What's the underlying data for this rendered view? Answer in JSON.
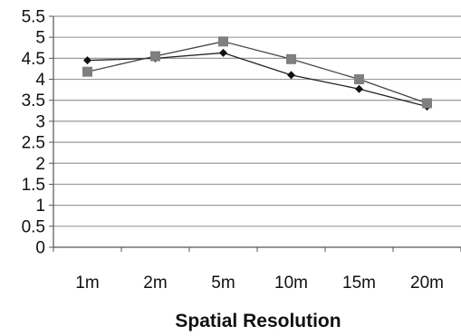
{
  "chart_data": {
    "type": "line",
    "title": "",
    "xlabel": "Spatial Resolution",
    "ylabel": "",
    "categories": [
      "1m",
      "2m",
      "5m",
      "10m",
      "15m",
      "20m"
    ],
    "ylim": [
      0,
      5.5
    ],
    "yticks": [
      "0",
      "0.5",
      "1",
      "1.5",
      "2",
      "2.5",
      "3",
      "3.5",
      "4",
      "4.5",
      "5",
      "5.5"
    ],
    "grid": true,
    "legend": "none",
    "series": [
      {
        "marker": "diamond",
        "color": "#111111",
        "values": [
          4.45,
          4.5,
          4.63,
          4.1,
          3.77,
          3.35
        ]
      },
      {
        "marker": "square",
        "color": "#7f7f7f",
        "values": [
          4.18,
          4.55,
          4.9,
          4.48,
          4.0,
          3.43
        ]
      }
    ]
  }
}
